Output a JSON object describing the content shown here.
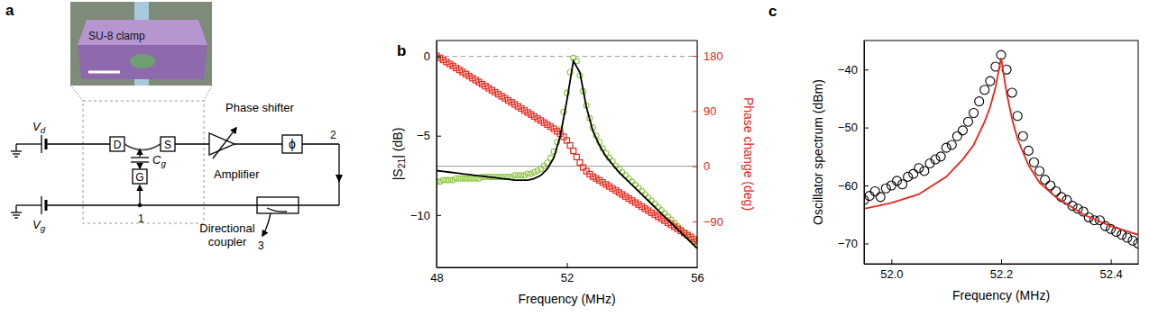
{
  "diagram": {
    "panel_label": "a",
    "inset_label": "SU-8 clamp",
    "vd": [
      {
        "t": "V"
      },
      {
        "t": "d",
        "sub": true
      }
    ],
    "vg": [
      {
        "t": "V"
      },
      {
        "t": "g",
        "sub": true
      }
    ],
    "cg": [
      {
        "t": "C"
      },
      {
        "t": "g",
        "sub": true
      }
    ],
    "drain": "D",
    "source": "S",
    "gate": "G",
    "amplifier": "Amplifier",
    "phase_shifter": "Phase shifter",
    "phase_symbol": "ϕ",
    "ports": [
      "1",
      "2",
      "3"
    ],
    "coupler": [
      "Directional",
      "coupler"
    ]
  },
  "chart_data": [
    {
      "type": "line",
      "panel_label": "b",
      "xlabel": "Frequency (MHz)",
      "ylabel": [
        {
          "t": "|S"
        },
        {
          "t": "21",
          "sub": true
        },
        {
          "t": "| (dB)"
        }
      ],
      "y2label": "Phase change (deg)",
      "xlim": [
        48,
        56
      ],
      "xticks": [
        48,
        52,
        56
      ],
      "ylim": [
        -13.3,
        1
      ],
      "yticks": [
        0,
        {
          "value": -5,
          "label": "−5"
        },
        {
          "value": -10,
          "label": "−10"
        }
      ],
      "y2lim": [
        -165,
        205
      ],
      "y2ticks": [
        180,
        90,
        0,
        {
          "value": -90,
          "label": "−90"
        }
      ],
      "reference_lines": [
        {
          "axis": "y",
          "value": 0,
          "line_style": "dashed"
        },
        {
          "axis": "y2",
          "value": 0,
          "line_style": "solid"
        }
      ],
      "x": [
        48,
        48.1,
        48.2,
        48.3,
        48.4,
        48.5,
        48.6,
        48.7,
        48.8,
        48.9,
        49,
        49.1,
        49.2,
        49.3,
        49.4,
        49.5,
        49.6,
        49.7,
        49.8,
        49.9,
        50,
        50.1,
        50.2,
        50.3,
        50.4,
        50.5,
        50.6,
        50.7,
        50.8,
        50.9,
        51,
        51.1,
        51.2,
        51.3,
        51.4,
        51.5,
        51.6,
        51.7,
        51.8,
        51.9,
        52,
        52.1,
        52.2,
        52.3,
        52.4,
        52.5,
        52.6,
        52.7,
        52.8,
        52.9,
        53,
        53.1,
        53.2,
        53.3,
        53.4,
        53.5,
        53.6,
        53.7,
        53.8,
        53.9,
        54,
        54.1,
        54.2,
        54.3,
        54.4,
        54.5,
        54.6,
        54.7,
        54.8,
        54.9,
        55,
        55.1,
        55.2,
        55.3,
        55.4,
        55.5,
        55.6,
        55.7,
        55.8,
        55.9,
        56
      ],
      "series": [
        {
          "type": "scatter",
          "marker": "circle",
          "color": "#8dc63f",
          "values": [
            -7.9,
            -7.9,
            -7.8,
            -7.8,
            -7.8,
            -7.8,
            -7.7,
            -7.7,
            -7.7,
            -7.7,
            -7.7,
            -7.7,
            -7.7,
            -7.7,
            -7.6,
            -7.6,
            -7.6,
            -7.6,
            -7.6,
            -7.6,
            -7.6,
            -7.6,
            -7.6,
            -7.6,
            -7.5,
            -7.5,
            -7.5,
            -7.5,
            -7.4,
            -7.4,
            -7.3,
            -7.2,
            -7.1,
            -6.9,
            -6.7,
            -6.4,
            -6.0,
            -5.4,
            -4.6,
            -3.5,
            -2.3,
            -1.0,
            -0.1,
            -0.3,
            -1.2,
            -2.2,
            -3.1,
            -3.9,
            -4.5,
            -5.0,
            -5.4,
            -5.8,
            -6.1,
            -6.4,
            -6.6,
            -6.9,
            -7.1,
            -7.3,
            -7.5,
            -7.7,
            -7.9,
            -8.1,
            -8.3,
            -8.5,
            -8.7,
            -8.9,
            -9.1,
            -9.3,
            -9.5,
            -9.7,
            -9.9,
            -10.1,
            -10.3,
            -10.5,
            -10.7,
            -10.9,
            -11.1,
            -11.3,
            -11.5,
            -11.7,
            -11.9
          ]
        },
        {
          "type": "scatter",
          "marker": "square",
          "color": "#e8261c",
          "axis": "y2",
          "values": [
            180,
            176.7,
            173.4,
            170.1,
            166.8,
            163.5,
            160.2,
            156.9,
            153.6,
            150.3,
            147,
            143.7,
            140.4,
            137.1,
            133.8,
            130.5,
            127.2,
            123.9,
            120.6,
            117.3,
            114,
            110.7,
            107.4,
            104.1,
            100.8,
            97.5,
            94.2,
            90.9,
            87.6,
            84.3,
            81,
            77.7,
            74.4,
            71.1,
            67.8,
            64.5,
            61.2,
            57,
            53,
            48,
            42,
            34,
            25,
            15,
            6,
            -2,
            -8,
            -13,
            -17,
            -20,
            -23,
            -26.3,
            -29.6,
            -32.9,
            -36.2,
            -39.5,
            -42.8,
            -46.1,
            -49.4,
            -52.7,
            -56,
            -59.3,
            -62.6,
            -65.9,
            -69.2,
            -72.5,
            -75.8,
            -79.1,
            -82.4,
            -85.7,
            -89,
            -92.3,
            -95.6,
            -98.9,
            -102.2,
            -105.5,
            -108.8,
            -112.1,
            -115.4,
            -118.7,
            -122
          ]
        },
        {
          "type": "line",
          "line_style": "solid",
          "color": "#000000",
          "x": [
            48,
            48.2,
            48.4,
            48.6,
            48.8,
            49,
            49.2,
            49.4,
            49.6,
            49.8,
            50,
            50.2,
            50.4,
            50.6,
            50.8,
            51,
            51.2,
            51.4,
            51.6,
            51.8,
            52,
            52.2,
            52.4,
            52.6,
            52.8,
            53,
            53.2,
            53.4,
            53.6,
            53.8,
            54,
            54.2,
            54.4,
            54.6,
            54.8,
            55,
            55.2,
            55.4,
            55.6,
            55.8,
            56
          ],
          "values": [
            -7.2,
            -7.25,
            -7.3,
            -7.35,
            -7.4,
            -7.45,
            -7.5,
            -7.55,
            -7.6,
            -7.65,
            -7.7,
            -7.75,
            -7.8,
            -7.8,
            -7.8,
            -7.7,
            -7.5,
            -7.1,
            -6.4,
            -5.0,
            -2.8,
            -0.3,
            -1.0,
            -3.2,
            -4.7,
            -5.6,
            -6.3,
            -6.8,
            -7.3,
            -7.7,
            -8.1,
            -8.5,
            -8.9,
            -9.3,
            -9.7,
            -10.1,
            -10.5,
            -10.9,
            -11.3,
            -11.7,
            -12.1
          ]
        }
      ]
    },
    {
      "type": "line",
      "panel_label": "c",
      "xlabel": "Frequency (MHz)",
      "ylabel": "Oscillator spectrum (dBm)",
      "xlim": [
        51.95,
        52.45
      ],
      "xticks": [
        {
          "value": 52,
          "label": "52.0"
        },
        52.2,
        52.4
      ],
      "ylim": [
        -73.5,
        -35
      ],
      "yticks": [
        {
          "value": -40,
          "label": "−40"
        },
        {
          "value": -50,
          "label": "−50"
        },
        {
          "value": -60,
          "label": "−60"
        },
        {
          "value": -70,
          "label": "−70"
        }
      ],
      "series": [
        {
          "type": "scatter",
          "marker": "circle",
          "color": "#000000",
          "x": [
            51.95,
            51.96,
            51.97,
            51.98,
            51.99,
            52,
            52.01,
            52.02,
            52.03,
            52.04,
            52.05,
            52.06,
            52.07,
            52.08,
            52.09,
            52.1,
            52.11,
            52.12,
            52.13,
            52.14,
            52.15,
            52.16,
            52.17,
            52.18,
            52.19,
            52.2,
            52.21,
            52.22,
            52.23,
            52.24,
            52.25,
            52.26,
            52.27,
            52.28,
            52.29,
            52.3,
            52.31,
            52.32,
            52.33,
            52.34,
            52.35,
            52.36,
            52.37,
            52.38,
            52.39,
            52.4,
            52.41,
            52.42,
            52.43,
            52.44,
            52.45
          ],
          "values": [
            -62.5,
            -61.8,
            -61,
            -62,
            -60.5,
            -60,
            -59.2,
            -59.8,
            -58.5,
            -58,
            -57,
            -57.5,
            -56.2,
            -55.5,
            -55,
            -53.5,
            -53,
            -51.5,
            -50.5,
            -49,
            -47.5,
            -45.5,
            -43.5,
            -42,
            -39.5,
            -37.5,
            -40,
            -44,
            -48,
            -51.5,
            -54,
            -56,
            -57.5,
            -59,
            -60,
            -61,
            -62,
            -62.5,
            -63.5,
            -64,
            -64.5,
            -65.5,
            -66,
            -66,
            -67,
            -67.5,
            -68,
            -68.5,
            -69,
            -69.5,
            -70
          ]
        },
        {
          "type": "line",
          "line_style": "solid",
          "color": "#e8261c",
          "x": [
            51.95,
            52,
            52.05,
            52.1,
            52.13,
            52.15,
            52.17,
            52.18,
            52.19,
            52.195,
            52.2,
            52.205,
            52.21,
            52.22,
            52.23,
            52.25,
            52.27,
            52.3,
            52.35,
            52.4,
            52.45
          ],
          "values": [
            -64,
            -63,
            -61.5,
            -58.5,
            -55.5,
            -53,
            -49,
            -46.5,
            -43,
            -40.5,
            -38,
            -41,
            -44,
            -48.5,
            -52,
            -56.5,
            -59.5,
            -62,
            -65,
            -67,
            -68.5
          ]
        }
      ]
    }
  ]
}
